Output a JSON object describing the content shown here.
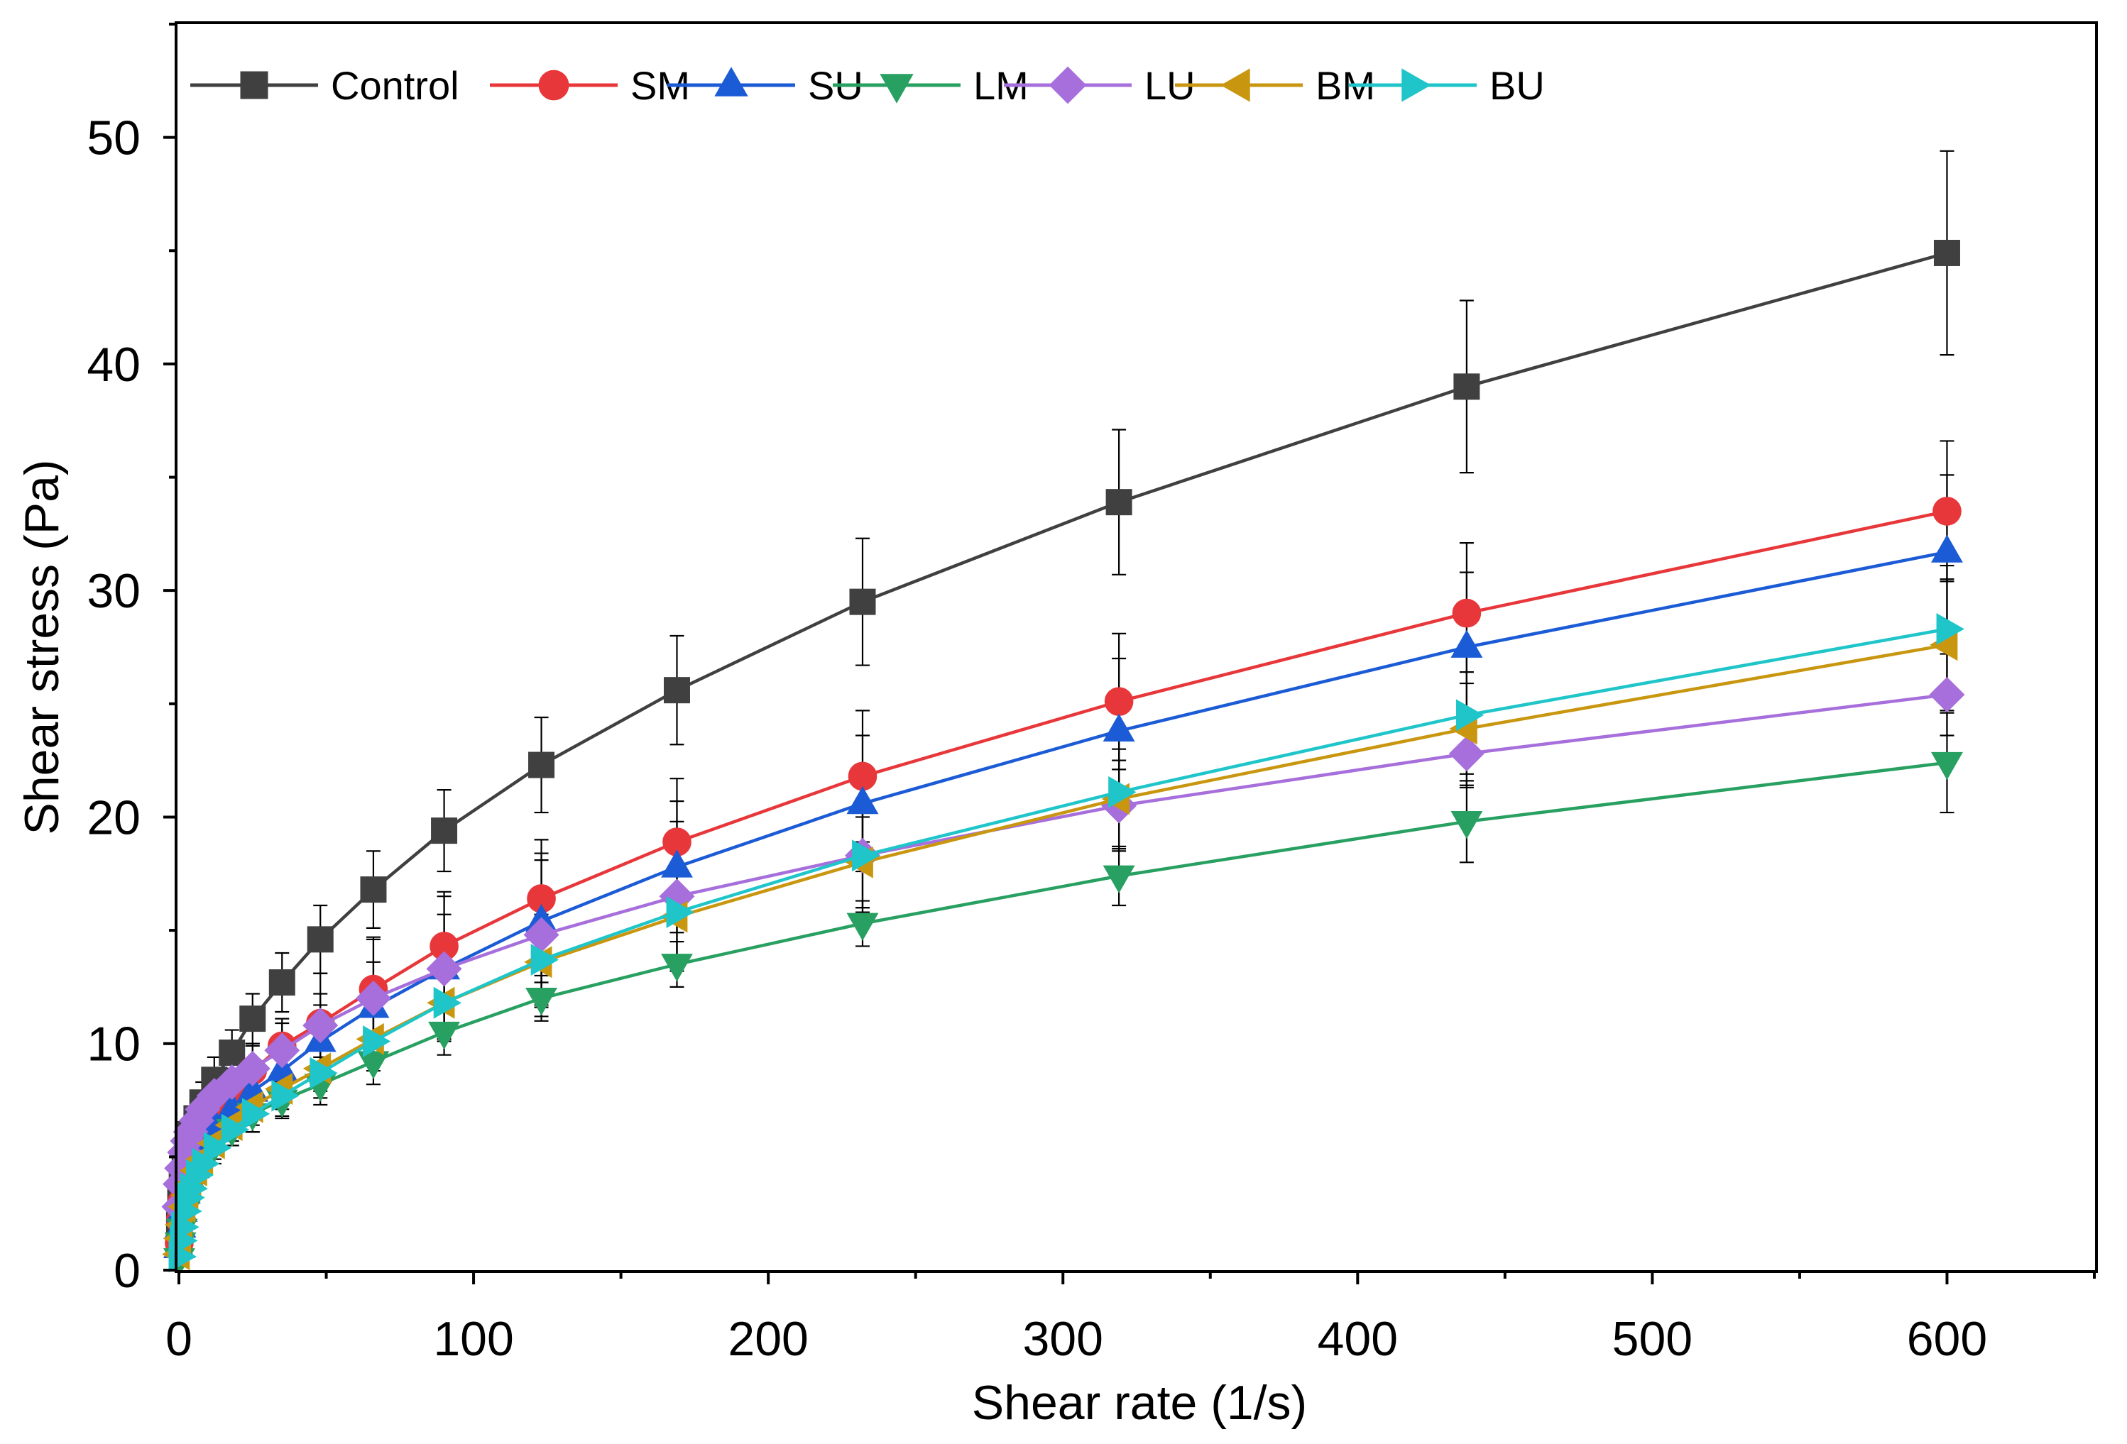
{
  "chart_data": {
    "type": "line",
    "title": "",
    "xlabel": "Shear rate (1/s)",
    "ylabel": "Shear stress (Pa)",
    "xlim": [
      0,
      650
    ],
    "ylim": [
      0,
      55
    ],
    "xticks": [
      0,
      100,
      200,
      300,
      400,
      500,
      600
    ],
    "yticks": [
      0,
      10,
      20,
      30,
      40,
      50
    ],
    "xtick_labels": [
      "0",
      "100",
      "200",
      "300",
      "400",
      "500",
      "600"
    ],
    "ytick_labels": [
      "0",
      "10",
      "20",
      "30",
      "40",
      "50"
    ],
    "legend_position": "top-left",
    "grid": false,
    "error_bars": true,
    "x": [
      0.1,
      0.5,
      1,
      2,
      3,
      4,
      6,
      8,
      12,
      18,
      25,
      35,
      48,
      66,
      90,
      123,
      169,
      232,
      319,
      437,
      600
    ],
    "series": [
      {
        "name": "Control",
        "color": "#404040",
        "marker": "square",
        "values": [
          2.0,
          3.0,
          3.8,
          4.8,
          5.5,
          6.0,
          6.7,
          7.4,
          8.4,
          9.6,
          11.1,
          12.7,
          14.6,
          16.8,
          19.4,
          22.3,
          25.6,
          29.5,
          33.9,
          39.0,
          44.9
        ],
        "errors": [
          0.3,
          0.4,
          0.5,
          0.6,
          0.6,
          0.7,
          0.8,
          0.9,
          1.0,
          1.0,
          1.1,
          1.3,
          1.5,
          1.7,
          1.8,
          2.1,
          2.4,
          2.8,
          3.2,
          3.8,
          4.5
        ]
      },
      {
        "name": "SM",
        "color": "#e8373a",
        "marker": "circle",
        "values": [
          1.2,
          2.2,
          3.0,
          3.9,
          4.5,
          5.0,
          5.6,
          6.2,
          7.0,
          7.9,
          8.8,
          9.9,
          10.9,
          12.4,
          14.3,
          16.4,
          18.9,
          21.8,
          25.1,
          29.0,
          33.5
        ],
        "errors": [
          0.2,
          0.3,
          0.4,
          0.5,
          0.6,
          0.6,
          0.7,
          0.8,
          0.9,
          1.0,
          1.1,
          1.2,
          2.2,
          2.3,
          2.4,
          2.6,
          2.8,
          2.9,
          3.0,
          3.1,
          3.1
        ]
      },
      {
        "name": "SU",
        "color": "#1c5bd6",
        "marker": "triangle-up",
        "values": [
          1.0,
          1.9,
          2.6,
          3.4,
          4.0,
          4.5,
          5.1,
          5.7,
          6.4,
          7.1,
          7.9,
          8.8,
          10.1,
          11.6,
          13.3,
          15.4,
          17.8,
          20.6,
          23.8,
          27.5,
          31.7
        ],
        "errors": [
          0.2,
          0.3,
          0.4,
          0.5,
          0.5,
          0.6,
          0.6,
          0.7,
          0.8,
          0.9,
          1.0,
          1.2,
          1.6,
          2.0,
          2.4,
          2.7,
          2.9,
          3.0,
          3.2,
          3.3,
          3.4
        ]
      },
      {
        "name": "LM",
        "color": "#28a061",
        "marker": "triangle-down",
        "values": [
          0.5,
          1.2,
          1.8,
          2.6,
          3.2,
          3.6,
          4.2,
          4.8,
          5.5,
          6.2,
          6.9,
          7.5,
          8.2,
          9.2,
          10.5,
          12.0,
          13.5,
          15.3,
          17.4,
          19.8,
          22.4
        ],
        "errors": [
          0.1,
          0.2,
          0.3,
          0.4,
          0.4,
          0.5,
          0.5,
          0.6,
          0.6,
          0.7,
          0.8,
          0.8,
          0.9,
          1.0,
          1.0,
          1.0,
          1.0,
          1.0,
          1.3,
          1.8,
          2.2
        ]
      },
      {
        "name": "LU",
        "color": "#a66fdc",
        "marker": "diamond",
        "values": [
          2.8,
          3.8,
          4.5,
          5.2,
          5.7,
          6.1,
          6.6,
          7.1,
          7.7,
          8.3,
          8.9,
          9.7,
          10.8,
          12.0,
          13.3,
          14.8,
          16.5,
          18.3,
          20.5,
          22.8,
          25.4
        ],
        "errors": [
          0.3,
          0.4,
          0.5,
          0.6,
          0.6,
          0.7,
          0.7,
          0.8,
          0.9,
          1.0,
          1.1,
          1.2,
          1.4,
          2.6,
          3.2,
          3.6,
          3.3,
          2.5,
          2.0,
          1.5,
          1.8
        ]
      },
      {
        "name": "BM",
        "color": "#c99610",
        "marker": "triangle-left",
        "values": [
          0.7,
          1.4,
          2.0,
          2.8,
          3.3,
          3.8,
          4.4,
          4.9,
          5.6,
          6.4,
          7.2,
          8.0,
          8.9,
          10.2,
          11.8,
          13.6,
          15.6,
          18.0,
          20.8,
          23.9,
          27.6
        ],
        "errors": [
          0.1,
          0.2,
          0.3,
          0.4,
          0.4,
          0.5,
          0.5,
          0.6,
          0.7,
          0.7,
          0.8,
          0.9,
          1.0,
          1.1,
          1.6,
          2.0,
          2.1,
          2.0,
          2.2,
          2.5,
          2.9
        ]
      },
      {
        "name": "BU",
        "color": "#1fc5c9",
        "marker": "triangle-right",
        "values": [
          0.6,
          1.3,
          1.9,
          2.6,
          3.2,
          3.6,
          4.2,
          4.7,
          5.4,
          6.2,
          6.9,
          7.7,
          8.7,
          10.1,
          11.8,
          13.7,
          15.8,
          18.3,
          21.1,
          24.5,
          28.3
        ],
        "errors": [
          0.1,
          0.2,
          0.3,
          0.4,
          0.4,
          0.5,
          0.5,
          0.6,
          0.7,
          0.7,
          0.8,
          0.9,
          1.1,
          1.3,
          1.6,
          2.0,
          2.2,
          2.3,
          2.4,
          2.6,
          2.8
        ]
      }
    ]
  }
}
